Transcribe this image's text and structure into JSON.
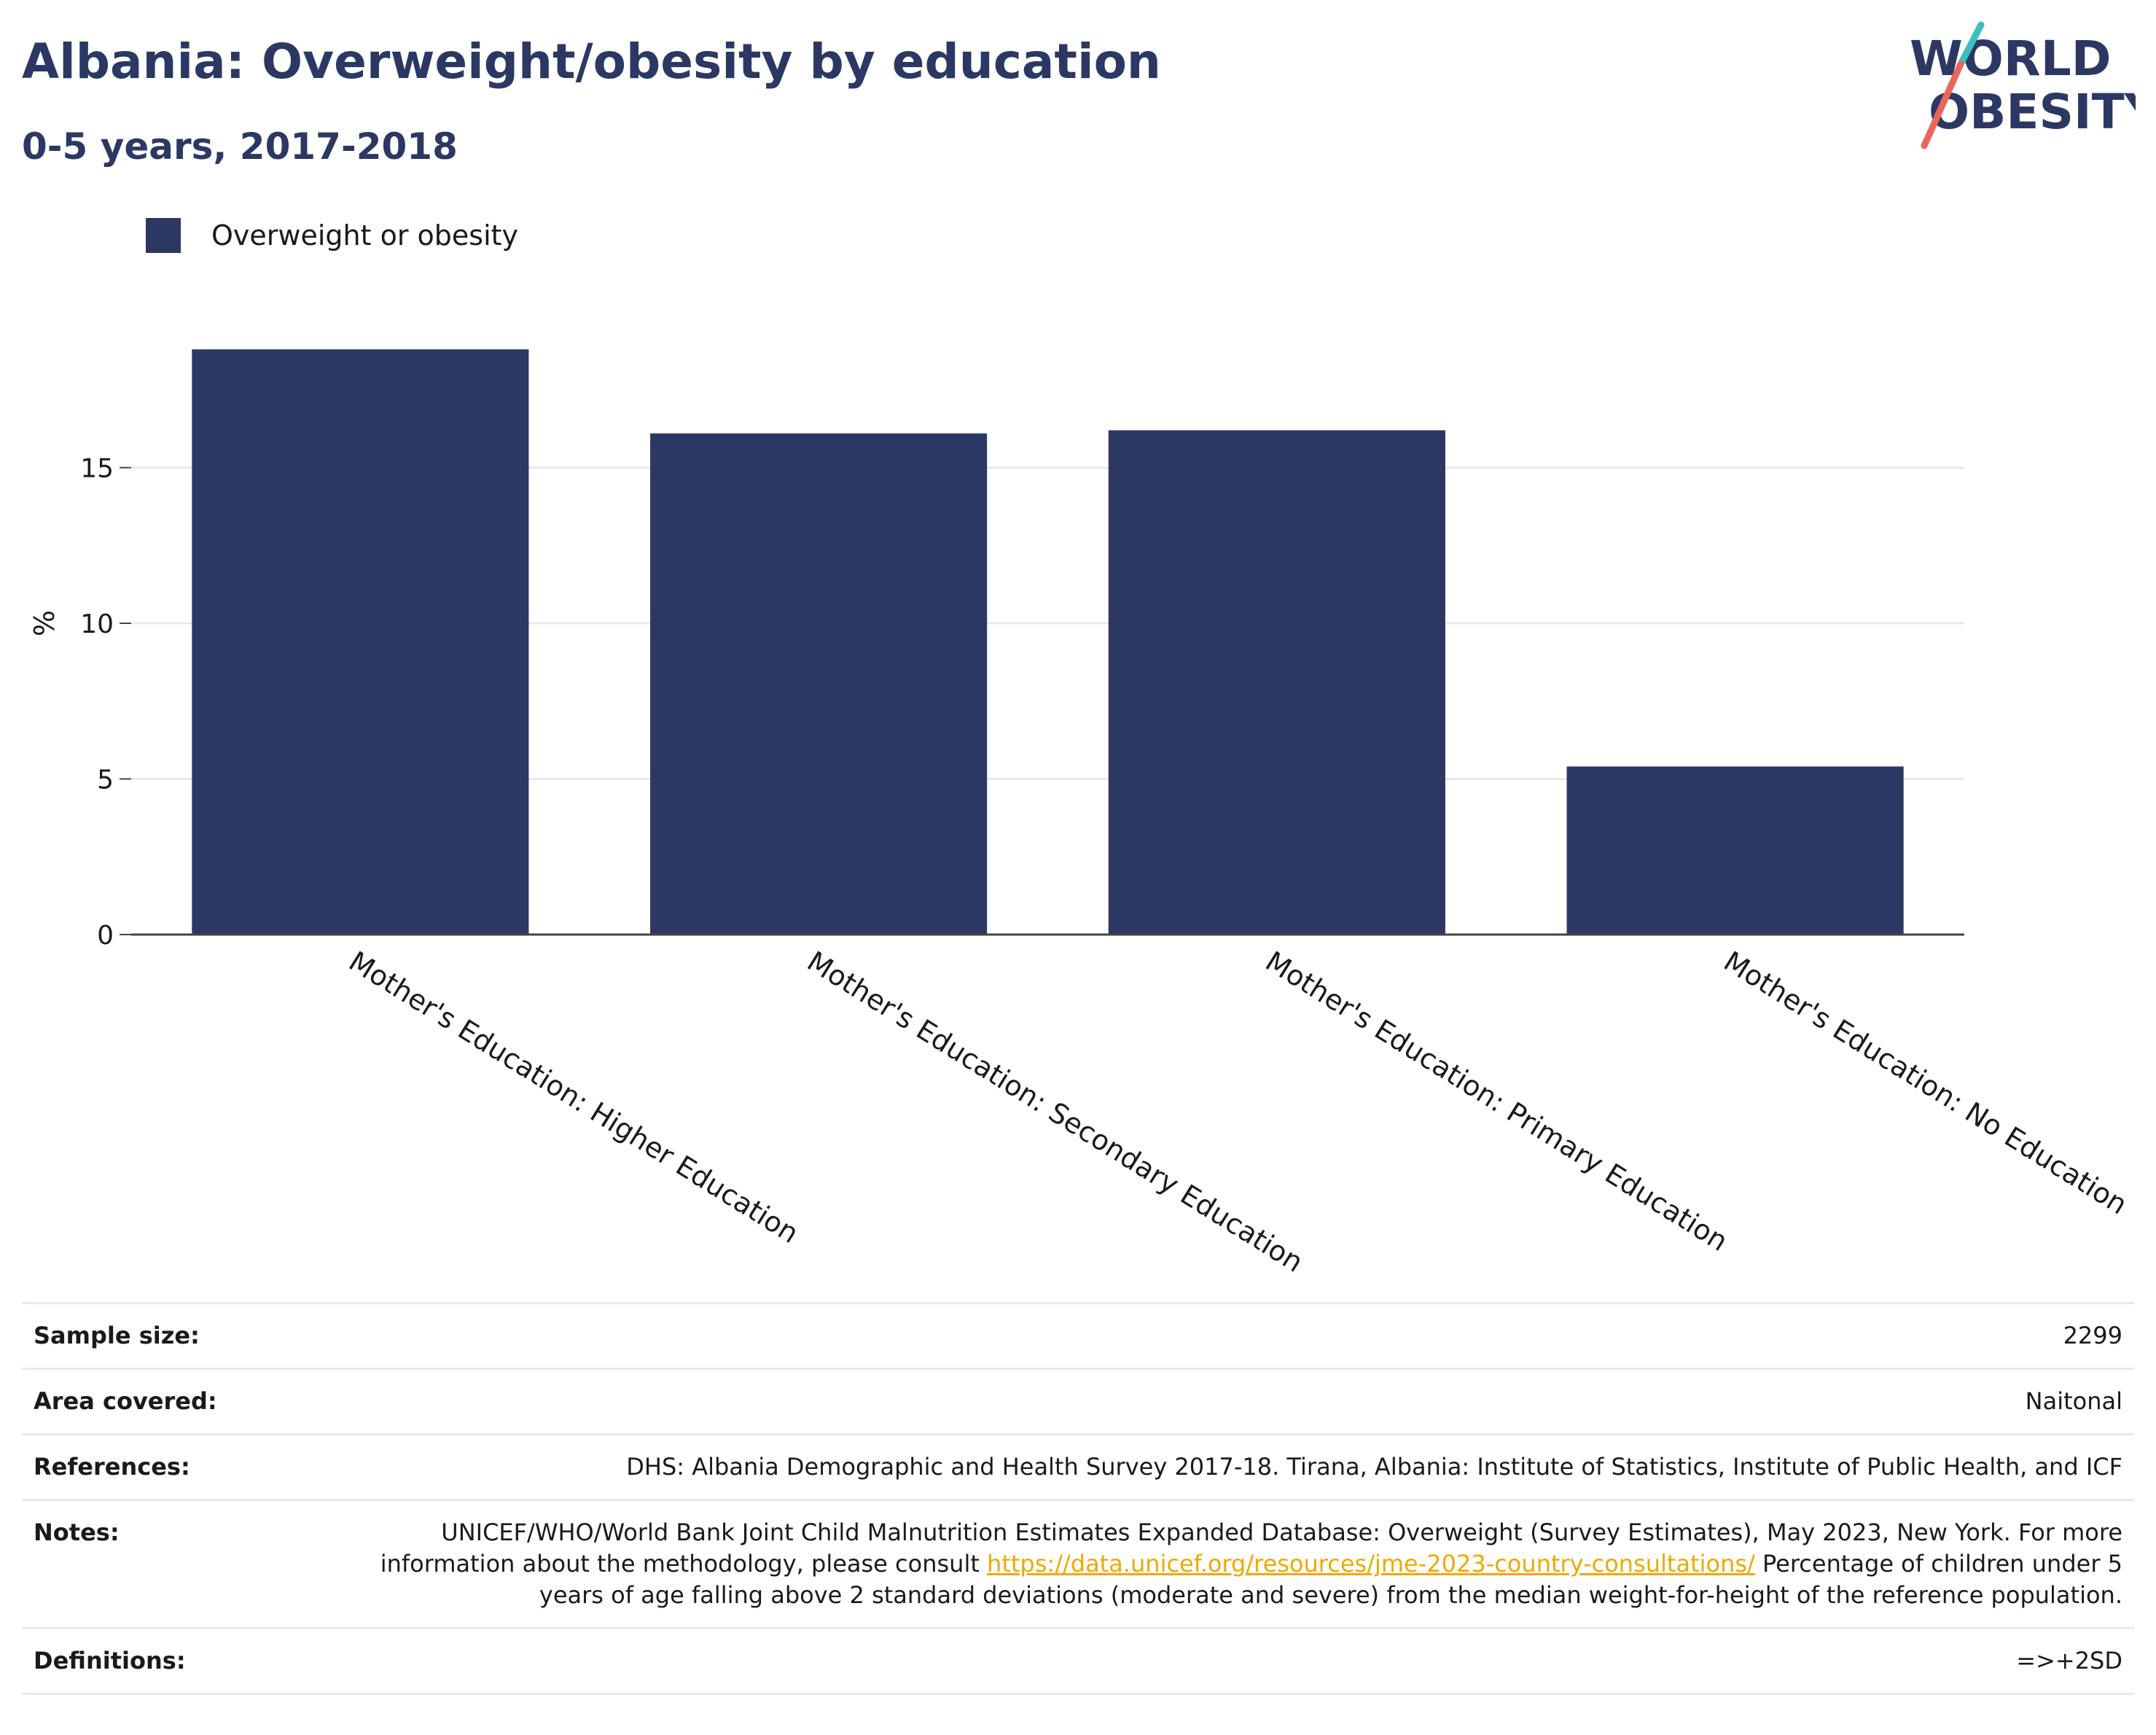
{
  "header": {
    "title": "Albania: Overweight/obesity by education",
    "subtitle": "0-5 years, 2017-2018"
  },
  "logo": {
    "line1": "WORLD",
    "line2": "OBESITY"
  },
  "colors": {
    "bar": "#2b3864",
    "link": "#f0a800",
    "logo_teal": "#3bbfbf",
    "logo_coral": "#e8675a"
  },
  "chart_data": {
    "type": "bar",
    "categories": [
      "Mother's Education: Higher Education",
      "Mother's Education: Secondary Education",
      "Mother's Education: Primary Education",
      "Mother's Education: No Education"
    ],
    "series": [
      {
        "name": "Overweight or obesity",
        "values": [
          18.8,
          16.1,
          16.2,
          5.4
        ]
      }
    ],
    "ylabel": "%",
    "xlabel": "",
    "ylim": [
      0,
      20
    ],
    "yticks": [
      0,
      5,
      10,
      15
    ],
    "grid": true,
    "legend": "top-left"
  },
  "info": {
    "sample_size_label": "Sample size:",
    "sample_size": "2299",
    "area_label": "Area covered:",
    "area": "Naitonal",
    "references_label": "References:",
    "references": "DHS: Albania Demographic and Health Survey 2017-18. Tirana, Albania: Institute of Statistics, Institute of Public Health, and ICF",
    "notes_label": "Notes:",
    "notes_text1": "UNICEF/WHO/World Bank Joint Child Malnutrition Estimates Expanded Database: Overweight (Survey Estimates), May 2023, New York. For more information about the methodology, please consult ",
    "notes_link": "https://data.unicef.org/resources/jme-2023-country-consultations/",
    "notes_text2": " Percentage of children under 5 years of age falling above 2 standard deviations (moderate and severe) from the median weight-for-height of the reference population.",
    "definitions_label": "Definitions:",
    "definitions": "=>+2SD"
  }
}
